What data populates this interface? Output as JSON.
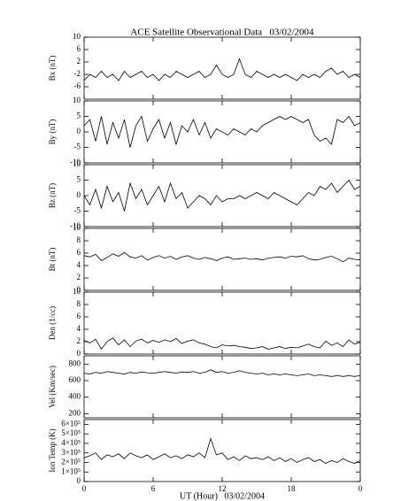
{
  "chart_data": [
    {
      "type": "line",
      "title": "ACE Satellite Observational Data   03/02/2004",
      "ylabel": "Bx (nT)",
      "color": "#000000",
      "x": [
        0,
        0.5,
        1,
        1.5,
        2,
        2.5,
        3,
        3.5,
        4,
        4.5,
        5,
        5.5,
        6,
        6.5,
        7,
        7.5,
        8,
        8.5,
        9,
        9.5,
        10,
        10.5,
        11,
        11.5,
        12,
        12.5,
        13,
        13.5,
        14,
        14.5,
        15,
        15.5,
        16,
        16.5,
        17,
        17.5,
        18,
        18.5,
        19,
        19.5,
        20,
        20.5,
        21,
        21.5,
        22,
        22.5,
        23,
        23.5,
        24
      ],
      "values": [
        -4,
        -2,
        -3,
        -1,
        -3,
        -2,
        -4,
        -1,
        -3,
        -2,
        -1,
        -3,
        -2,
        -4,
        -2,
        -3,
        -1,
        -2,
        -3,
        -2,
        -1,
        -3,
        -2,
        1,
        -2,
        -3,
        -2,
        3,
        -2,
        -3,
        -1,
        -2,
        -3,
        -2,
        -3,
        -2,
        -3,
        -4,
        -2,
        -3,
        -2,
        -3,
        -1,
        0,
        -2,
        -1,
        -3,
        -2,
        -3
      ],
      "xlim": [
        0,
        24
      ],
      "ylim": [
        -10,
        10
      ],
      "yticks": [
        -6,
        -2,
        2,
        6,
        10
      ]
    },
    {
      "type": "line",
      "ylabel": "By (nT)",
      "color": "#000000",
      "x": [
        0,
        0.5,
        1,
        1.5,
        2,
        2.5,
        3,
        3.5,
        4,
        4.5,
        5,
        5.5,
        6,
        6.5,
        7,
        7.5,
        8,
        8.5,
        9,
        9.5,
        10,
        10.5,
        11,
        11.5,
        12,
        12.5,
        13,
        13.5,
        14,
        14.5,
        15,
        15.5,
        16,
        16.5,
        17,
        17.5,
        18,
        18.5,
        19,
        19.5,
        20,
        20.5,
        21,
        21.5,
        22,
        22.5,
        23,
        23.5,
        24
      ],
      "values": [
        2,
        4,
        -3,
        5,
        -4,
        3,
        -2,
        4,
        -5,
        2,
        5,
        -3,
        1,
        4,
        -2,
        3,
        -4,
        2,
        0,
        4,
        -1,
        3,
        -2,
        1,
        0,
        -1,
        1,
        0,
        -1,
        1,
        0,
        2,
        3,
        4,
        5,
        4,
        5,
        4,
        3,
        4,
        -1,
        -3,
        -2,
        -4,
        4,
        3,
        5,
        2,
        3
      ],
      "xlim": [
        0,
        24
      ],
      "ylim": [
        -10,
        10
      ],
      "yticks": [
        -10,
        -5,
        0,
        5,
        10
      ]
    },
    {
      "type": "line",
      "ylabel": "Bz (nT)",
      "color": "#000000",
      "x": [
        0,
        0.5,
        1,
        1.5,
        2,
        2.5,
        3,
        3.5,
        4,
        4.5,
        5,
        5.5,
        6,
        6.5,
        7,
        7.5,
        8,
        8.5,
        9,
        9.5,
        10,
        10.5,
        11,
        11.5,
        12,
        12.5,
        13,
        13.5,
        14,
        14.5,
        15,
        15.5,
        16,
        16.5,
        17,
        17.5,
        18,
        18.5,
        19,
        19.5,
        20,
        20.5,
        21,
        21.5,
        22,
        22.5,
        23,
        23.5,
        24
      ],
      "values": [
        0,
        -3,
        2,
        -4,
        3,
        -2,
        1,
        -5,
        4,
        -1,
        2,
        -3,
        0,
        3,
        -2,
        4,
        -1,
        1,
        -4,
        -2,
        0,
        -1,
        -3,
        0,
        -2,
        -1,
        -1,
        0,
        -1,
        0,
        1,
        0,
        -1,
        1,
        0,
        -1,
        -2,
        -3,
        -1,
        1,
        0,
        3,
        2,
        4,
        1,
        3,
        5,
        2,
        3
      ],
      "xlim": [
        0,
        24
      ],
      "ylim": [
        -10,
        10
      ],
      "yticks": [
        -10,
        -5,
        0,
        5,
        10
      ]
    },
    {
      "type": "line",
      "ylabel": "Bt (nT)",
      "color": "#000000",
      "x": [
        0,
        0.5,
        1,
        1.5,
        2,
        2.5,
        3,
        3.5,
        4,
        4.5,
        5,
        5.5,
        6,
        6.5,
        7,
        7.5,
        8,
        8.5,
        9,
        9.5,
        10,
        10.5,
        11,
        11.5,
        12,
        12.5,
        13,
        13.5,
        14,
        14.5,
        15,
        15.5,
        16,
        16.5,
        17,
        17.5,
        18,
        18.5,
        19,
        19.5,
        20,
        20.5,
        21,
        21.5,
        22,
        22.5,
        23,
        23.5,
        24
      ],
      "values": [
        5.6,
        5.4,
        5.8,
        4.8,
        5.3,
        5.9,
        5.5,
        6.1,
        5.4,
        5.2,
        5.6,
        4.9,
        5.3,
        5.6,
        5.2,
        5.5,
        5.0,
        5.4,
        5.6,
        5.2,
        5.0,
        5.3,
        5.1,
        4.8,
        5.2,
        5.4,
        5.0,
        5.1,
        5.2,
        5.0,
        5.1,
        4.9,
        5.2,
        5.3,
        5.4,
        5.2,
        5.5,
        5.4,
        5.6,
        5.1,
        4.9,
        5.0,
        5.3,
        5.5,
        5.1,
        4.6,
        5.2,
        5.0,
        4.9
      ],
      "xlim": [
        0,
        24
      ],
      "ylim": [
        0,
        10
      ],
      "yticks": [
        0,
        2,
        4,
        6,
        8,
        10
      ]
    },
    {
      "type": "line",
      "ylabel": "Den (1/cc)",
      "color": "#000000",
      "x": [
        0,
        0.5,
        1,
        1.5,
        2,
        2.5,
        3,
        3.5,
        4,
        4.5,
        5,
        5.5,
        6,
        6.5,
        7,
        7.5,
        8,
        8.5,
        9,
        9.5,
        10,
        10.5,
        11,
        11.5,
        12,
        12.5,
        13,
        13.5,
        14,
        14.5,
        15,
        15.5,
        16,
        16.5,
        17,
        17.5,
        18,
        18.5,
        19,
        19.5,
        20,
        20.5,
        21,
        21.5,
        22,
        22.5,
        23,
        23.5,
        24
      ],
      "values": [
        2.2,
        1.8,
        2.4,
        0.8,
        2.0,
        2.6,
        1.5,
        2.3,
        1.2,
        2.1,
        2.4,
        1.8,
        2.2,
        1.9,
        2.3,
        2.0,
        2.5,
        1.7,
        2.1,
        2.3,
        1.8,
        1.6,
        1.2,
        1.0,
        1.5,
        1.3,
        1.4,
        1.2,
        1.1,
        0.9,
        1.0,
        1.2,
        0.8,
        1.0,
        1.2,
        0.9,
        1.1,
        1.0,
        1.3,
        1.6,
        1.2,
        1.0,
        2.1,
        1.4,
        1.8,
        1.2,
        2.3,
        1.6,
        1.9
      ],
      "xlim": [
        0,
        24
      ],
      "ylim": [
        0,
        10
      ],
      "yticks": [
        0,
        2,
        4,
        6,
        8,
        10
      ]
    },
    {
      "type": "line",
      "ylabel": "Vel (Km/sec)",
      "color": "#000000",
      "x": [
        0,
        0.5,
        1,
        1.5,
        2,
        2.5,
        3,
        3.5,
        4,
        4.5,
        5,
        5.5,
        6,
        6.5,
        7,
        7.5,
        8,
        8.5,
        9,
        9.5,
        10,
        10.5,
        11,
        11.5,
        12,
        12.5,
        13,
        13.5,
        14,
        14.5,
        15,
        15.5,
        16,
        16.5,
        17,
        17.5,
        18,
        18.5,
        19,
        19.5,
        20,
        20.5,
        21,
        21.5,
        22,
        22.5,
        23,
        23.5,
        24
      ],
      "values": [
        690,
        680,
        700,
        690,
        710,
        700,
        690,
        680,
        700,
        690,
        705,
        695,
        690,
        700,
        710,
        700,
        690,
        705,
        700,
        710,
        690,
        700,
        730,
        700,
        710,
        690,
        700,
        720,
        700,
        690,
        680,
        690,
        670,
        680,
        670,
        680,
        670,
        660,
        670,
        680,
        660,
        670,
        660,
        650,
        660,
        650,
        660,
        650,
        660
      ],
      "xlim": [
        0,
        24
      ],
      "ylim": [
        150,
        900
      ],
      "yticks": [
        200,
        400,
        600,
        800
      ]
    },
    {
      "type": "line",
      "ylabel": "Ion Temp (K)",
      "x_label": "UT (Hour)   03/02/2004",
      "color": "#000000",
      "x": [
        0,
        0.5,
        1,
        1.5,
        2,
        2.5,
        3,
        3.5,
        4,
        4.5,
        5,
        5.5,
        6,
        6.5,
        7,
        7.5,
        8,
        8.5,
        9,
        9.5,
        10,
        10.5,
        11,
        11.5,
        12,
        12.5,
        13,
        13.5,
        14,
        14.5,
        15,
        15.5,
        16,
        16.5,
        17,
        17.5,
        18,
        18.5,
        19,
        19.5,
        20,
        20.5,
        21,
        21.5,
        22,
        22.5,
        23,
        23.5,
        24
      ],
      "values": [
        250000,
        270000,
        300000,
        230000,
        280000,
        260000,
        290000,
        240000,
        300000,
        270000,
        250000,
        280000,
        230000,
        260000,
        290000,
        250000,
        270000,
        240000,
        280000,
        260000,
        300000,
        250000,
        450000,
        280000,
        300000,
        230000,
        260000,
        220000,
        270000,
        240000,
        250000,
        230000,
        260000,
        220000,
        250000,
        210000,
        240000,
        200000,
        230000,
        250000,
        210000,
        230000,
        190000,
        220000,
        200000,
        240000,
        210000,
        190000,
        220000
      ],
      "xlim": [
        0,
        24
      ],
      "ylim": [
        0,
        650000
      ],
      "yticks": [
        0,
        {
          "value": 100000,
          "label": "1×10⁵"
        },
        {
          "value": 200000,
          "label": "2×10⁵"
        },
        {
          "value": 300000,
          "label": "3×10⁵"
        },
        {
          "value": 400000,
          "label": "4×10⁵"
        },
        {
          "value": 500000,
          "label": "5×10⁵"
        },
        {
          "value": 600000,
          "label": "6×10⁵"
        }
      ],
      "xticks": [
        0,
        6,
        12,
        18,
        {
          "value": 24,
          "label": "0"
        }
      ]
    }
  ]
}
